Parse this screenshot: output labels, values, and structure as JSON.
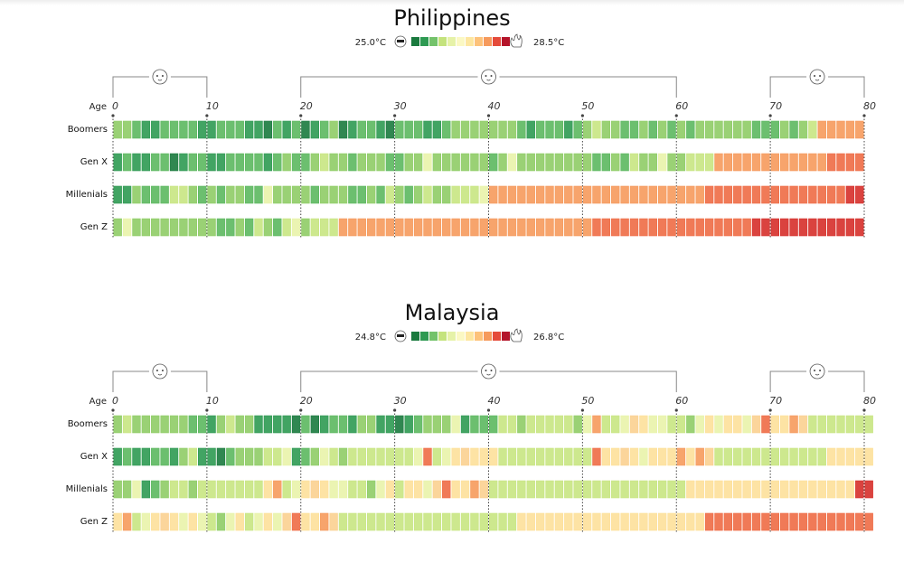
{
  "chart_data": {
    "type": "heatmap",
    "xlabel": "Age",
    "x_ticks": [
      0,
      10,
      20,
      30,
      40,
      50,
      60,
      70,
      80
    ],
    "x_range": [
      0,
      80
    ],
    "rows": [
      "Boomers",
      "Gen X",
      "Millenials",
      "Gen Z"
    ],
    "color_scale": [
      "#1a7a3e",
      "#2e9a52",
      "#5cb85f",
      "#8fcc66",
      "#c4e37d",
      "#eef5b0",
      "#fde6a0",
      "#fdc27a",
      "#f69a5c",
      "#ee6c45",
      "#d62f2a",
      "#b4142a"
    ],
    "legend_bins": [
      "#1a7a3e",
      "#2e9a52",
      "#73c26a",
      "#c4e37d",
      "#e6f2a8",
      "#fbf8c3",
      "#fde6a0",
      "#fdc27a",
      "#f69a5c",
      "#e54b3a",
      "#b4142a"
    ],
    "life_stages": [
      {
        "icon": "baby-face-icon",
        "from": 0,
        "to": 10
      },
      {
        "icon": "adult-face-icon",
        "from": 20,
        "to": 60
      },
      {
        "icon": "elder-face-icon",
        "from": 70,
        "to": 80
      }
    ],
    "panels": [
      {
        "country": "Philippines",
        "min_label": "25.0°C",
        "max_label": "28.5°C",
        "levels": {
          "Boomers": [
            3,
            3,
            2,
            1,
            1,
            2,
            2,
            2,
            2,
            1,
            1,
            2,
            2,
            2,
            1,
            1,
            0,
            2,
            1,
            2,
            0,
            1,
            2,
            3,
            0,
            1,
            2,
            2,
            1,
            0,
            2,
            2,
            2,
            1,
            1,
            2,
            3,
            3,
            3,
            3,
            3,
            3,
            3,
            2,
            1,
            2,
            2,
            2,
            1,
            2,
            3,
            4,
            3,
            3,
            2,
            2,
            3,
            2,
            3,
            2,
            3,
            2,
            3,
            3,
            3,
            3,
            3,
            3,
            2,
            2,
            2,
            3,
            2,
            3,
            4,
            8,
            8,
            8,
            8,
            8
          ],
          "Gen X": [
            1,
            2,
            1,
            1,
            2,
            2,
            0,
            1,
            2,
            2,
            1,
            1,
            2,
            2,
            2,
            2,
            1,
            2,
            3,
            2,
            2,
            3,
            4,
            3,
            3,
            2,
            3,
            3,
            3,
            2,
            2,
            3,
            3,
            5,
            3,
            3,
            3,
            3,
            3,
            3,
            2,
            3,
            5,
            3,
            3,
            3,
            3,
            3,
            3,
            3,
            3,
            2,
            2,
            3,
            2,
            4,
            3,
            3,
            5,
            3,
            3,
            4,
            4,
            4,
            8,
            8,
            8,
            8,
            8,
            8,
            8,
            8,
            8,
            8,
            8,
            8,
            9,
            9,
            9,
            9
          ],
          "Millenials": [
            1,
            1,
            3,
            2,
            2,
            2,
            4,
            4,
            3,
            2,
            3,
            2,
            3,
            3,
            2,
            2,
            5,
            3,
            3,
            3,
            3,
            2,
            3,
            3,
            3,
            2,
            2,
            3,
            2,
            4,
            3,
            2,
            3,
            4,
            3,
            3,
            4,
            4,
            4,
            5,
            8,
            8,
            8,
            8,
            8,
            8,
            8,
            8,
            8,
            8,
            8,
            8,
            8,
            8,
            8,
            8,
            8,
            8,
            8,
            8,
            8,
            8,
            8,
            9,
            9,
            9,
            9,
            9,
            9,
            9,
            9,
            9,
            9,
            9,
            9,
            9,
            9,
            9,
            10,
            10
          ],
          "Gen Z": [
            3,
            5,
            3,
            3,
            3,
            3,
            3,
            3,
            3,
            3,
            3,
            2,
            2,
            3,
            2,
            4,
            3,
            2,
            4,
            5,
            3,
            4,
            4,
            4,
            8,
            8,
            8,
            8,
            8,
            8,
            8,
            8,
            8,
            8,
            8,
            8,
            8,
            8,
            8,
            8,
            8,
            8,
            8,
            8,
            8,
            8,
            8,
            8,
            8,
            8,
            8,
            9,
            9,
            9,
            9,
            9,
            9,
            9,
            9,
            9,
            9,
            9,
            9,
            9,
            9,
            9,
            9,
            9,
            10,
            10,
            10,
            10,
            10,
            10,
            10,
            10,
            10,
            10,
            10,
            10
          ]
        }
      },
      {
        "country": "Malaysia",
        "min_label": "24.8°C",
        "max_label": "26.8°C",
        "levels": {
          "Boomers": [
            3,
            4,
            3,
            3,
            3,
            3,
            3,
            3,
            2,
            2,
            1,
            3,
            4,
            3,
            3,
            1,
            1,
            1,
            1,
            0,
            2,
            0,
            1,
            2,
            2,
            1,
            3,
            3,
            1,
            1,
            0,
            1,
            2,
            3,
            3,
            3,
            5,
            1,
            2,
            2,
            2,
            4,
            4,
            3,
            4,
            4,
            4,
            4,
            4,
            3,
            5,
            8,
            4,
            4,
            5,
            7,
            6,
            5,
            5,
            4,
            4,
            3,
            5,
            6,
            5,
            6,
            6,
            5,
            7,
            9,
            6,
            6,
            8,
            7,
            4,
            4,
            4,
            4,
            4,
            4,
            4
          ],
          "Gen X": [
            1,
            2,
            1,
            1,
            2,
            2,
            1,
            3,
            4,
            1,
            1,
            0,
            2,
            3,
            3,
            3,
            4,
            4,
            5,
            1,
            2,
            3,
            5,
            4,
            3,
            4,
            4,
            4,
            4,
            4,
            4,
            4,
            5,
            9,
            4,
            5,
            6,
            7,
            6,
            6,
            6,
            4,
            4,
            4,
            4,
            4,
            4,
            4,
            4,
            4,
            4,
            9,
            6,
            6,
            7,
            6,
            5,
            6,
            6,
            6,
            8,
            6,
            8,
            7,
            4,
            4,
            4,
            4,
            4,
            4,
            4,
            4,
            4,
            4,
            4,
            4,
            6,
            6,
            6,
            6,
            6
          ],
          "Millenials": [
            3,
            3,
            5,
            1,
            2,
            3,
            4,
            4,
            3,
            4,
            4,
            4,
            4,
            4,
            4,
            4,
            6,
            8,
            4,
            5,
            6,
            7,
            6,
            5,
            5,
            4,
            4,
            3,
            5,
            6,
            4,
            6,
            6,
            5,
            7,
            9,
            6,
            6,
            8,
            7,
            4,
            4,
            4,
            4,
            4,
            4,
            4,
            4,
            4,
            4,
            4,
            4,
            4,
            4,
            4,
            4,
            4,
            4,
            4,
            4,
            4,
            6,
            6,
            6,
            6,
            6,
            6,
            6,
            6,
            6,
            6,
            6,
            6,
            6,
            6,
            6,
            6,
            6,
            6,
            10,
            10
          ],
          "Gen Z": [
            6,
            8,
            4,
            5,
            6,
            7,
            6,
            5,
            6,
            5,
            4,
            3,
            5,
            6,
            4,
            5,
            6,
            5,
            7,
            9,
            6,
            6,
            8,
            7,
            4,
            4,
            4,
            4,
            4,
            4,
            4,
            4,
            4,
            4,
            4,
            4,
            4,
            4,
            4,
            4,
            4,
            4,
            4,
            6,
            6,
            6,
            6,
            6,
            6,
            6,
            6,
            6,
            6,
            6,
            6,
            6,
            6,
            6,
            6,
            6,
            6,
            6,
            6,
            9,
            9,
            9,
            9,
            9,
            9,
            9,
            9,
            9,
            9,
            9,
            9,
            9,
            9,
            9,
            9,
            9,
            9
          ]
        }
      }
    ]
  }
}
